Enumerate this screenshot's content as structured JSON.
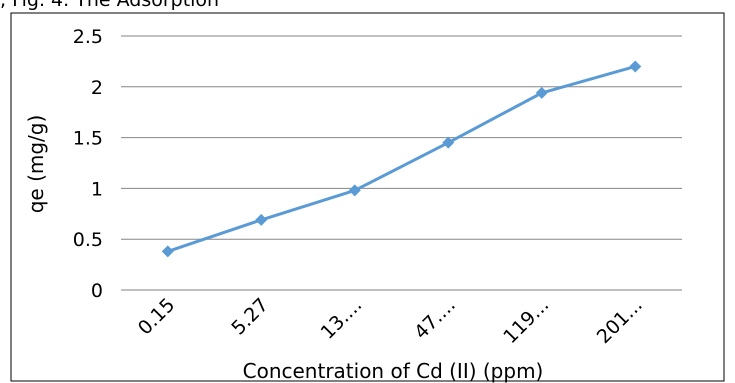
{
  "caption": ", Fig. 4. The Adsorption",
  "chart_data": {
    "type": "line",
    "categories": [
      "0.15",
      "5.27",
      "13....",
      "47....",
      "119...",
      "201..."
    ],
    "series": [
      {
        "values": [
          0.38,
          0.69,
          0.98,
          1.45,
          1.94,
          2.2
        ],
        "color": "#5b9bd5"
      }
    ],
    "xlabel": "Concentration of Cd (II) (ppm)",
    "ylabel": "qe (mg/g)",
    "ylim": [
      0,
      2.5
    ],
    "yticks": [
      "0",
      "0.5",
      "1",
      "1.5",
      "2",
      "2.5"
    ],
    "grid": true,
    "marker": "diamond"
  }
}
